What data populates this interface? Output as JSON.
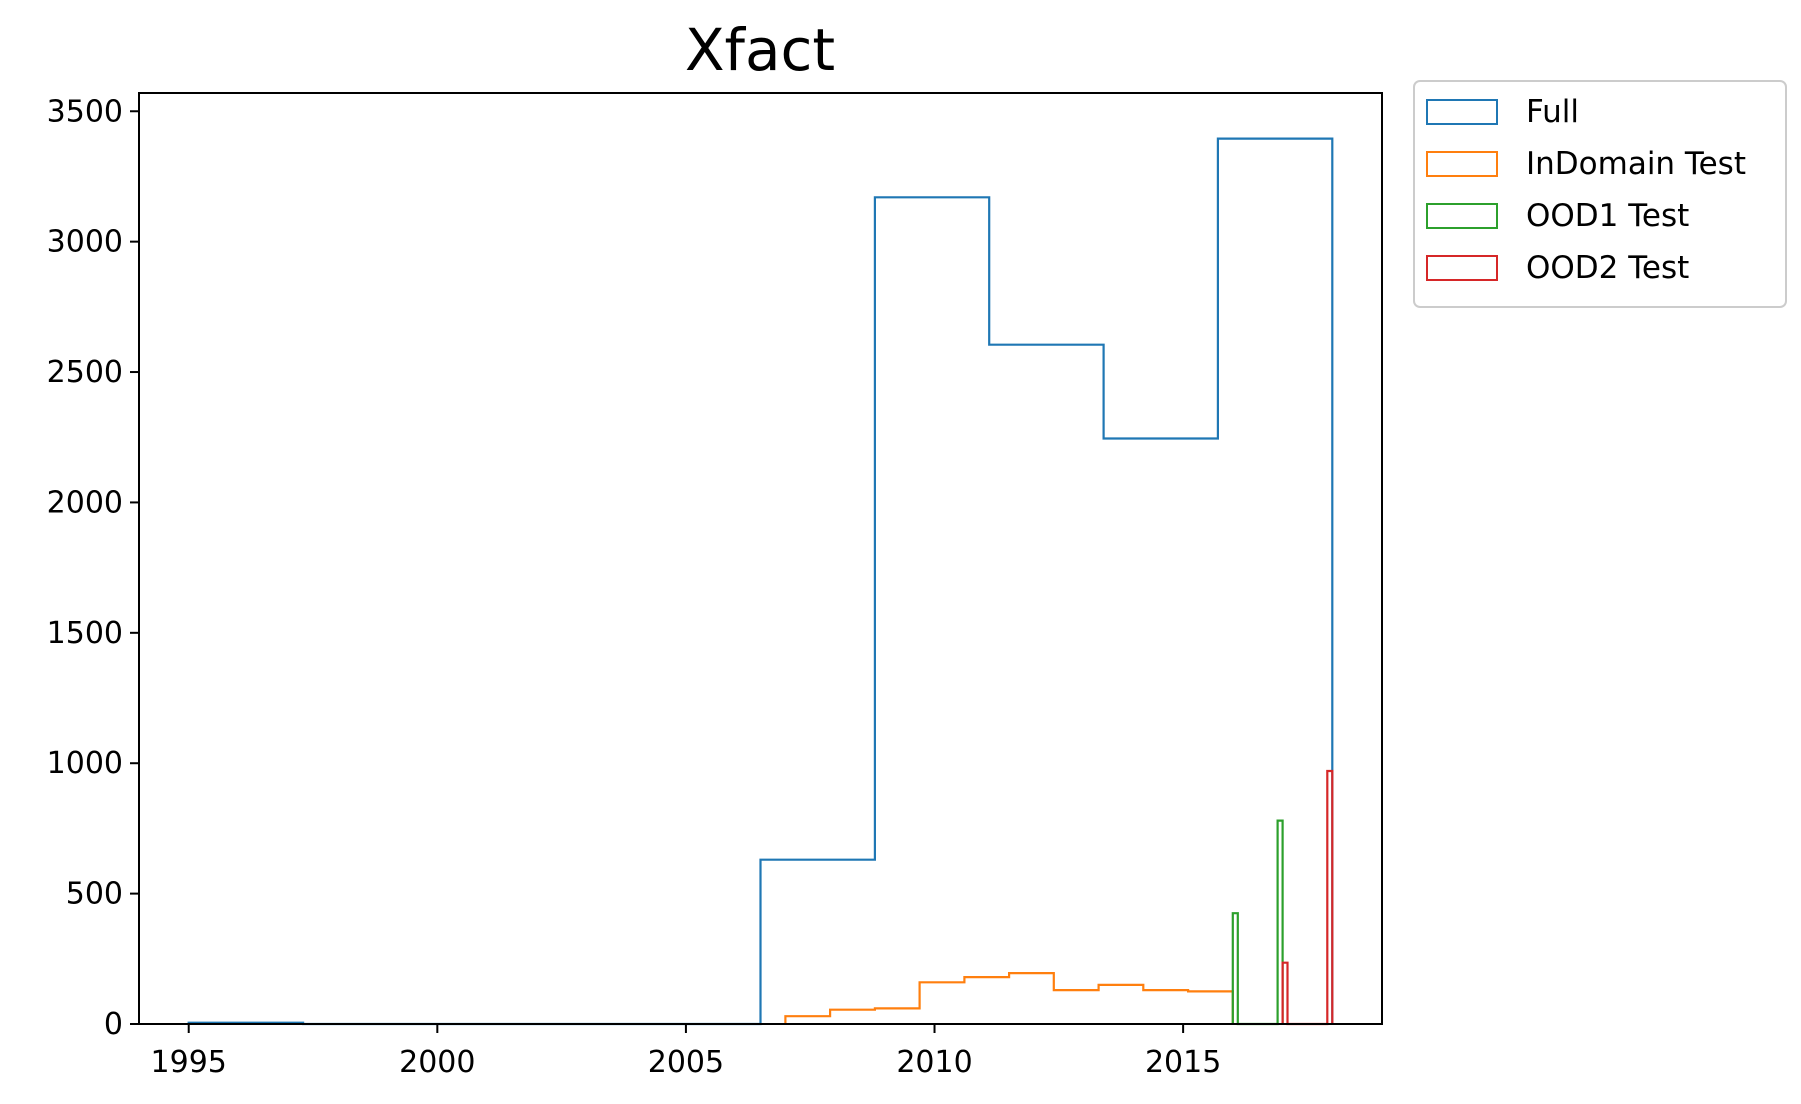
{
  "chart_data": {
    "type": "histogram-step",
    "title": "Xfact",
    "xlabel": "",
    "ylabel": "",
    "xlim": [
      1994,
      2019
    ],
    "ylim": [
      0,
      3570
    ],
    "x_ticks": [
      1995,
      2000,
      2005,
      2010,
      2015
    ],
    "y_ticks": [
      0,
      500,
      1000,
      1500,
      2000,
      2500,
      3000,
      3500
    ],
    "grid": false,
    "legend_position": "outside-top-right",
    "series": [
      {
        "name": "Full",
        "color": "#1f77b4",
        "edges": [
          1995.0,
          1997.3,
          1999.6,
          2001.9,
          2004.2,
          2006.5,
          2008.8,
          2011.1,
          2013.4,
          2015.7,
          2018.0
        ],
        "counts": [
          5,
          0,
          0,
          0,
          0,
          630,
          3170,
          2605,
          2245,
          3395
        ]
      },
      {
        "name": "InDomain Test",
        "color": "#ff7f0e",
        "edges": [
          2007.0,
          2007.9,
          2008.8,
          2009.7,
          2010.6,
          2011.5,
          2012.4,
          2013.3,
          2014.2,
          2015.1,
          2016.0
        ],
        "counts": [
          30,
          55,
          60,
          160,
          180,
          195,
          130,
          150,
          130,
          125
        ]
      },
      {
        "name": "OOD1 Test",
        "color": "#2ca02c",
        "edges": [
          2016.0,
          2016.1,
          2016.2,
          2016.3,
          2016.4,
          2016.5,
          2016.6,
          2016.7,
          2016.8,
          2016.9,
          2017.0
        ],
        "counts": [
          425,
          0,
          0,
          0,
          0,
          0,
          0,
          0,
          0,
          780
        ]
      },
      {
        "name": "OOD2 Test",
        "color": "#d62728",
        "edges": [
          2017.0,
          2017.1,
          2017.2,
          2017.3,
          2017.4,
          2017.5,
          2017.6,
          2017.7,
          2017.8,
          2017.9,
          2018.0
        ],
        "counts": [
          235,
          0,
          0,
          0,
          0,
          0,
          0,
          0,
          0,
          970
        ]
      }
    ]
  }
}
